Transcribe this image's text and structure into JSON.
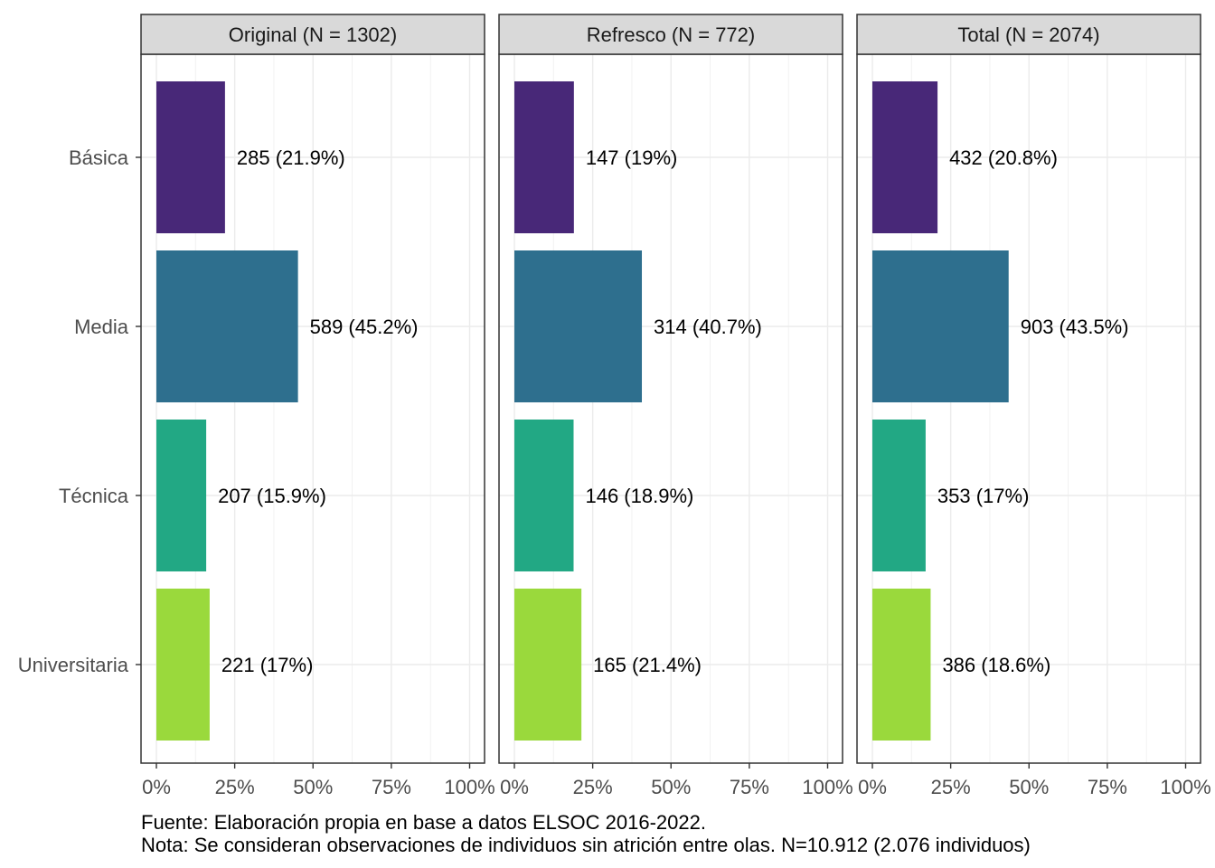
{
  "chart_data": {
    "type": "bar",
    "orientation": "horizontal",
    "categories": [
      "Básica",
      "Media",
      "Técnica",
      "Universitaria"
    ],
    "xlim": [
      0,
      100
    ],
    "x_ticks": [
      "0%",
      "25%",
      "50%",
      "75%",
      "100%"
    ],
    "grid": true,
    "legend": "none",
    "colors": [
      "#482878",
      "#2e6f8e",
      "#22a884",
      "#9ad93c"
    ],
    "panels": [
      {
        "title": "Original (N = 1302)",
        "values": [
          21.9,
          45.2,
          15.9,
          17.0
        ],
        "labels": [
          "285 (21.9%)",
          "589 (45.2%)",
          "207 (15.9%)",
          "221 (17%)"
        ]
      },
      {
        "title": "Refresco (N = 772)",
        "values": [
          19.0,
          40.7,
          18.9,
          21.4
        ],
        "labels": [
          "147 (19%)",
          "314 (40.7%)",
          "146 (18.9%)",
          "165 (21.4%)"
        ]
      },
      {
        "title": "Total (N = 2074)",
        "values": [
          20.8,
          43.5,
          17.0,
          18.6
        ],
        "labels": [
          "432 (20.8%)",
          "903 (43.5%)",
          "353 (17%)",
          "386 (18.6%)"
        ]
      }
    ]
  },
  "caption": {
    "source": "Fuente: Elaboración propia en base a datos ELSOC 2016-2022.",
    "note": "Nota: Se consideran observaciones de individuos sin atrición entre olas. N=10.912 (2.076 individuos)"
  }
}
